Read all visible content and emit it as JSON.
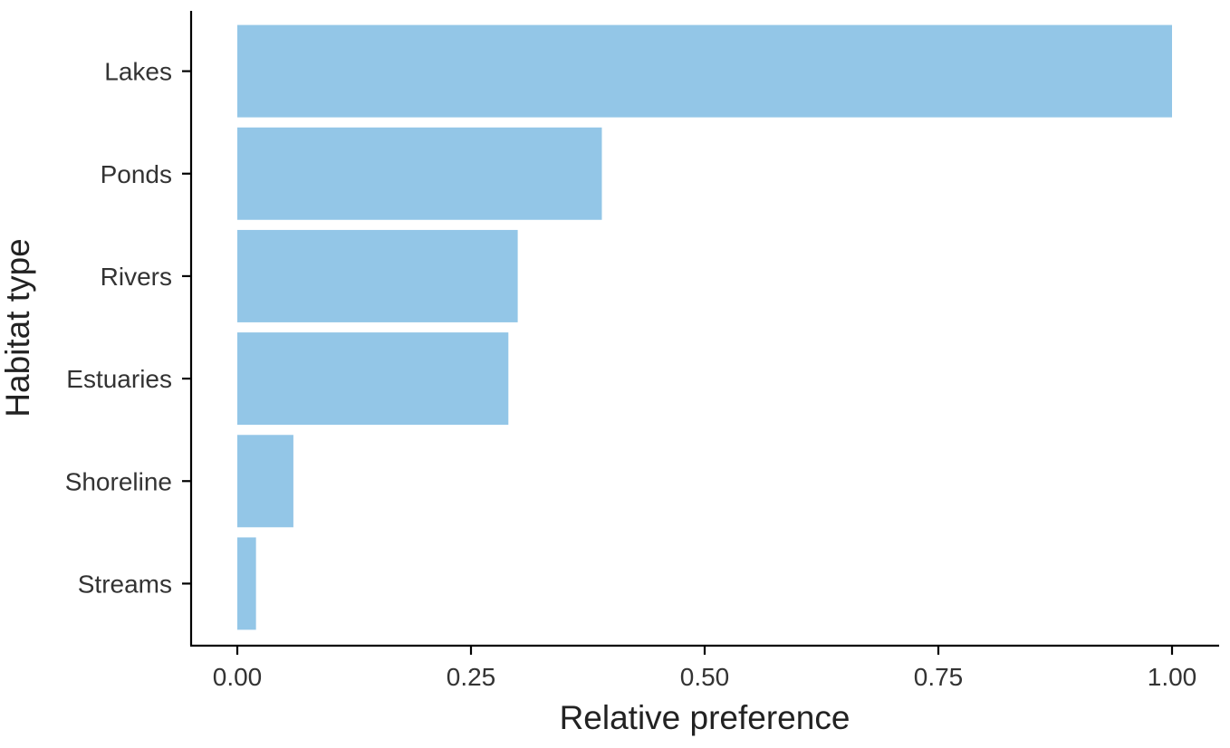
{
  "chart_data": {
    "type": "bar",
    "orientation": "horizontal",
    "categories": [
      "Lakes",
      "Ponds",
      "Rivers",
      "Estuaries",
      "Shoreline",
      "Streams"
    ],
    "values": [
      1.0,
      0.39,
      0.3,
      0.29,
      0.06,
      0.02
    ],
    "xlabel": "Relative preference",
    "ylabel": "Habitat type",
    "xlim": [
      0,
      1.0
    ],
    "x_ticks": [
      "0.00",
      "0.25",
      "0.50",
      "0.75",
      "1.00"
    ],
    "grid": false,
    "legend": "none",
    "bar_color": "#93c6e7"
  }
}
